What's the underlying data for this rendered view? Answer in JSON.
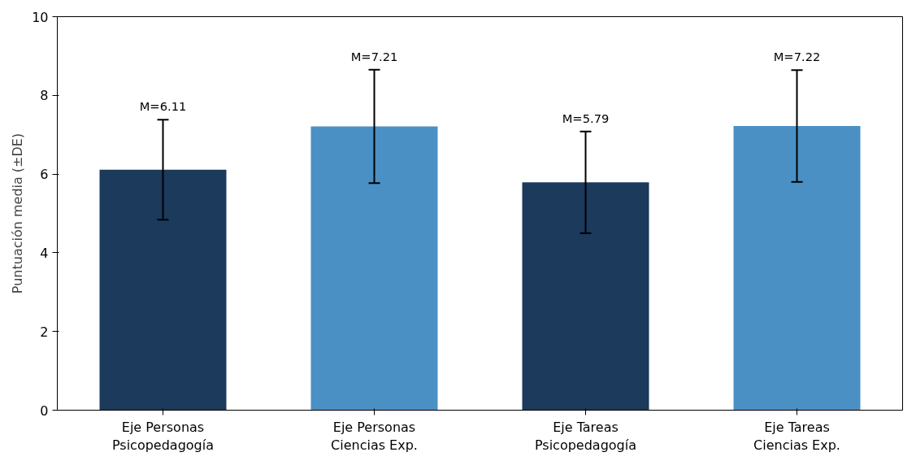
{
  "chart_data": {
    "type": "bar",
    "ylabel": "Puntuación media (±DE)",
    "categories": [
      "Eje Personas\nPsicopedagogía",
      "Eje Personas\nCiencias Exp.",
      "Eje Tareas\nPsicopedagogía",
      "Eje Tareas\nCiencias Exp."
    ],
    "values": [
      6.11,
      7.21,
      5.79,
      7.22
    ],
    "colors": [
      "#1b3a5c",
      "#4a90c4",
      "#1b3a5c",
      "#4a90c4"
    ],
    "errors": [
      1.27,
      1.44,
      1.29,
      1.42
    ],
    "annotations": [
      {
        "text": "M=6.11",
        "x": "Eje Personas\nPsicopedagogía",
        "y": 7.38
      },
      {
        "text": "M=7.21",
        "x": "Eje Personas\nCiencias Exp.",
        "y": 8.65
      },
      {
        "text": "M=5.79",
        "x": "Eje Tareas\nPsicopedagogía",
        "y": 7.08
      },
      {
        "text": "M=7.22",
        "x": "Eje Tareas\nCiencias Exp.",
        "y": 8.64
      }
    ],
    "ylim": [
      0,
      10
    ],
    "yticks": [
      0,
      2,
      4,
      6,
      8,
      10
    ],
    "grid": false
  }
}
